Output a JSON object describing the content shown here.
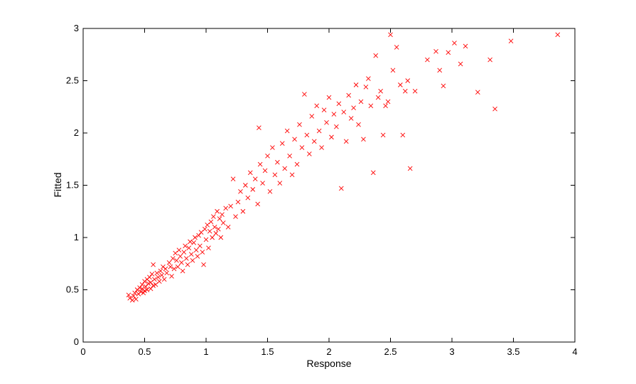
{
  "chart_data": {
    "type": "scatter",
    "title": "",
    "xlabel": "Response",
    "ylabel": "Fitted",
    "xlim": [
      0,
      4
    ],
    "ylim": [
      0,
      3
    ],
    "xticks": [
      "0",
      "0.5",
      "1",
      "1.5",
      "2",
      "2.5",
      "3",
      "3.5",
      "4"
    ],
    "yticks": [
      "0",
      "0.5",
      "1",
      "1.5",
      "2",
      "2.5",
      "3"
    ],
    "grid": false,
    "marker": "x",
    "color": "#ff0000",
    "points": [
      [
        0.37,
        0.45
      ],
      [
        0.38,
        0.42
      ],
      [
        0.4,
        0.4
      ],
      [
        0.41,
        0.44
      ],
      [
        0.42,
        0.47
      ],
      [
        0.43,
        0.41
      ],
      [
        0.44,
        0.5
      ],
      [
        0.45,
        0.46
      ],
      [
        0.46,
        0.52
      ],
      [
        0.47,
        0.48
      ],
      [
        0.48,
        0.55
      ],
      [
        0.48,
        0.51
      ],
      [
        0.49,
        0.47
      ],
      [
        0.5,
        0.58
      ],
      [
        0.5,
        0.49
      ],
      [
        0.51,
        0.53
      ],
      [
        0.52,
        0.6
      ],
      [
        0.52,
        0.5
      ],
      [
        0.53,
        0.56
      ],
      [
        0.54,
        0.62
      ],
      [
        0.55,
        0.51
      ],
      [
        0.55,
        0.57
      ],
      [
        0.56,
        0.65
      ],
      [
        0.57,
        0.54
      ],
      [
        0.57,
        0.74
      ],
      [
        0.58,
        0.6
      ],
      [
        0.59,
        0.55
      ],
      [
        0.6,
        0.66
      ],
      [
        0.61,
        0.62
      ],
      [
        0.62,
        0.58
      ],
      [
        0.63,
        0.68
      ],
      [
        0.64,
        0.64
      ],
      [
        0.65,
        0.72
      ],
      [
        0.66,
        0.6
      ],
      [
        0.67,
        0.7
      ],
      [
        0.68,
        0.66
      ],
      [
        0.7,
        0.76
      ],
      [
        0.71,
        0.72
      ],
      [
        0.72,
        0.63
      ],
      [
        0.73,
        0.8
      ],
      [
        0.74,
        0.7
      ],
      [
        0.75,
        0.85
      ],
      [
        0.76,
        0.78
      ],
      [
        0.77,
        0.72
      ],
      [
        0.78,
        0.88
      ],
      [
        0.79,
        0.82
      ],
      [
        0.8,
        0.76
      ],
      [
        0.81,
        0.68
      ],
      [
        0.82,
        0.86
      ],
      [
        0.83,
        0.92
      ],
      [
        0.84,
        0.8
      ],
      [
        0.85,
        0.74
      ],
      [
        0.86,
        0.9
      ],
      [
        0.87,
        0.96
      ],
      [
        0.88,
        0.84
      ],
      [
        0.89,
        0.78
      ],
      [
        0.9,
        0.95
      ],
      [
        0.91,
        1.0
      ],
      [
        0.92,
        0.88
      ],
      [
        0.93,
        0.82
      ],
      [
        0.94,
        1.02
      ],
      [
        0.95,
        0.92
      ],
      [
        0.96,
        1.05
      ],
      [
        0.97,
        0.86
      ],
      [
        0.98,
        0.74
      ],
      [
        0.99,
        1.08
      ],
      [
        1.0,
        0.98
      ],
      [
        1.01,
        1.12
      ],
      [
        1.02,
        0.9
      ],
      [
        1.03,
        1.06
      ],
      [
        1.04,
        1.15
      ],
      [
        1.05,
        1.0
      ],
      [
        1.06,
        1.2
      ],
      [
        1.07,
        1.1
      ],
      [
        1.08,
        1.04
      ],
      [
        1.09,
        1.25
      ],
      [
        1.1,
        1.08
      ],
      [
        1.11,
        1.18
      ],
      [
        1.12,
        1.0
      ],
      [
        1.13,
        1.22
      ],
      [
        1.14,
        1.14
      ],
      [
        1.16,
        1.28
      ],
      [
        1.18,
        1.1
      ],
      [
        1.2,
        1.3
      ],
      [
        1.22,
        1.56
      ],
      [
        1.24,
        1.2
      ],
      [
        1.26,
        1.34
      ],
      [
        1.28,
        1.44
      ],
      [
        1.3,
        1.25
      ],
      [
        1.32,
        1.5
      ],
      [
        1.34,
        1.38
      ],
      [
        1.36,
        1.62
      ],
      [
        1.38,
        1.46
      ],
      [
        1.4,
        1.56
      ],
      [
        1.42,
        1.32
      ],
      [
        1.43,
        2.05
      ],
      [
        1.44,
        1.7
      ],
      [
        1.46,
        1.52
      ],
      [
        1.48,
        1.64
      ],
      [
        1.5,
        1.78
      ],
      [
        1.52,
        1.44
      ],
      [
        1.54,
        1.86
      ],
      [
        1.56,
        1.6
      ],
      [
        1.58,
        1.72
      ],
      [
        1.6,
        1.52
      ],
      [
        1.62,
        1.9
      ],
      [
        1.64,
        1.66
      ],
      [
        1.66,
        2.02
      ],
      [
        1.68,
        1.78
      ],
      [
        1.7,
        1.6
      ],
      [
        1.72,
        1.94
      ],
      [
        1.74,
        1.7
      ],
      [
        1.76,
        2.08
      ],
      [
        1.78,
        1.86
      ],
      [
        1.8,
        2.37
      ],
      [
        1.82,
        1.98
      ],
      [
        1.84,
        1.8
      ],
      [
        1.86,
        2.16
      ],
      [
        1.88,
        1.92
      ],
      [
        1.9,
        2.26
      ],
      [
        1.92,
        2.02
      ],
      [
        1.94,
        1.86
      ],
      [
        1.96,
        2.22
      ],
      [
        1.98,
        2.1
      ],
      [
        2.0,
        2.34
      ],
      [
        2.02,
        1.96
      ],
      [
        2.04,
        2.18
      ],
      [
        2.06,
        2.06
      ],
      [
        2.08,
        2.28
      ],
      [
        2.1,
        1.47
      ],
      [
        2.12,
        2.2
      ],
      [
        2.14,
        1.92
      ],
      [
        2.16,
        2.36
      ],
      [
        2.18,
        2.14
      ],
      [
        2.2,
        2.24
      ],
      [
        2.22,
        2.46
      ],
      [
        2.24,
        2.08
      ],
      [
        2.26,
        2.3
      ],
      [
        2.28,
        1.94
      ],
      [
        2.3,
        2.44
      ],
      [
        2.32,
        2.52
      ],
      [
        2.34,
        2.26
      ],
      [
        2.36,
        1.62
      ],
      [
        2.38,
        2.74
      ],
      [
        2.4,
        2.34
      ],
      [
        2.42,
        2.4
      ],
      [
        2.44,
        1.98
      ],
      [
        2.46,
        2.26
      ],
      [
        2.48,
        2.3
      ],
      [
        2.5,
        2.94
      ],
      [
        2.52,
        2.6
      ],
      [
        2.55,
        2.82
      ],
      [
        2.58,
        2.46
      ],
      [
        2.6,
        1.98
      ],
      [
        2.62,
        2.4
      ],
      [
        2.64,
        2.5
      ],
      [
        2.66,
        1.66
      ],
      [
        2.7,
        2.4
      ],
      [
        2.8,
        2.7
      ],
      [
        2.87,
        2.78
      ],
      [
        2.9,
        2.6
      ],
      [
        2.93,
        2.45
      ],
      [
        2.97,
        2.77
      ],
      [
        3.02,
        2.86
      ],
      [
        3.07,
        2.66
      ],
      [
        3.11,
        2.83
      ],
      [
        3.21,
        2.39
      ],
      [
        3.31,
        2.7
      ],
      [
        3.35,
        2.23
      ],
      [
        3.48,
        2.88
      ],
      [
        3.86,
        2.94
      ]
    ]
  }
}
